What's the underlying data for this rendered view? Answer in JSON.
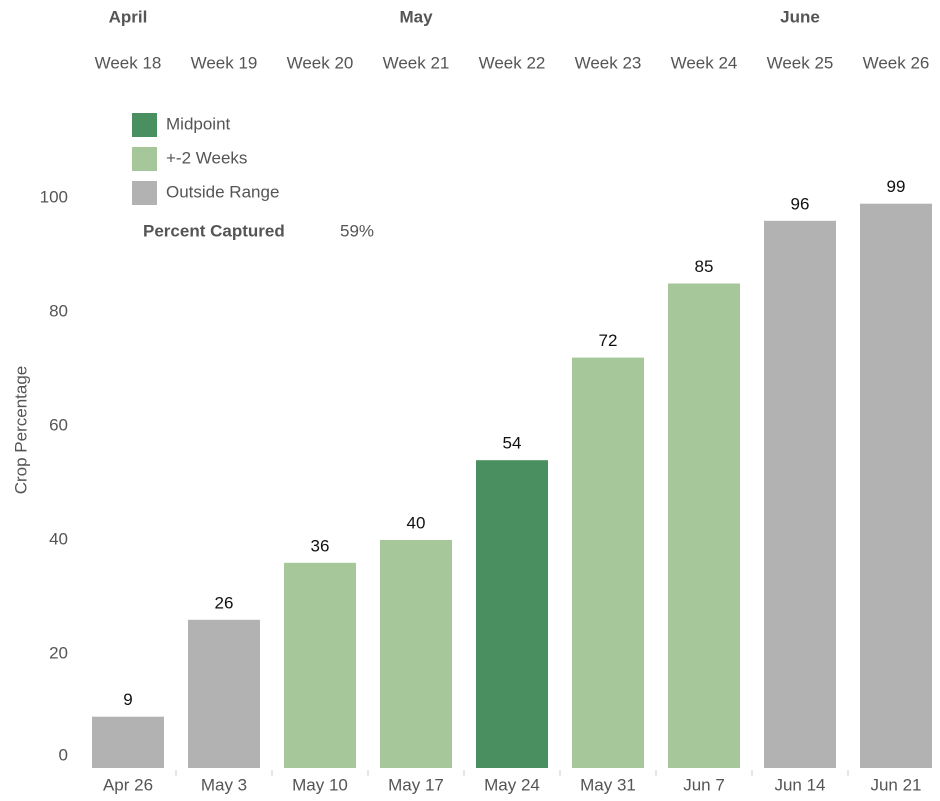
{
  "chart_data": {
    "type": "bar",
    "y_label": "Crop Percentage",
    "months": [
      "April",
      "May",
      "June"
    ],
    "weeks": [
      "Week 18",
      "Week 19",
      "Week 20",
      "Week 21",
      "Week 22",
      "Week 23",
      "Week 24",
      "Week 25",
      "Week 26"
    ],
    "categories": [
      "Apr 26",
      "May 3",
      "May 10",
      "May 17",
      "May 24",
      "May 31",
      "Jun 7",
      "Jun 14",
      "Jun 21"
    ],
    "series": [
      {
        "name": "Midpoint",
        "color": "#4a8f5f",
        "values": [
          null,
          null,
          null,
          null,
          54,
          null,
          null,
          null,
          null
        ]
      },
      {
        "name": "+-2 Weeks",
        "color": "#a5c79a",
        "values": [
          null,
          null,
          36,
          40,
          null,
          72,
          85,
          null,
          null
        ]
      },
      {
        "name": "Outside Range",
        "color": "#b2b2b2",
        "values": [
          9,
          26,
          null,
          null,
          null,
          null,
          null,
          96,
          99
        ]
      }
    ],
    "summary": {
      "label": "Percent Captured",
      "value": 59,
      "value_label": "59%"
    },
    "ylim": [
      0,
      100
    ],
    "yticks": [
      0,
      20,
      40,
      60,
      80,
      100
    ],
    "grid": false
  }
}
